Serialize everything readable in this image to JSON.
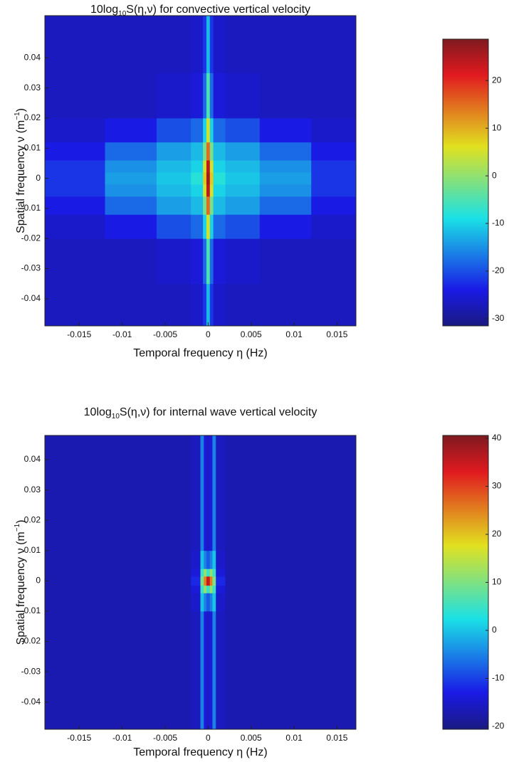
{
  "chart_data": [
    {
      "type": "heatmap",
      "title": [
        "10log",
        "10",
        "S(η,ν) for convective vertical velocity"
      ],
      "x_label": "Temporal frequency η (Hz)",
      "y_label": [
        "Spatial frequency ν (m",
        "−1",
        ")"
      ],
      "xlim": [
        -0.019,
        0.0172
      ],
      "ylim": [
        -0.049,
        0.054
      ],
      "xticks": [
        -0.015,
        -0.01,
        -0.005,
        0,
        0.005,
        0.01,
        0.015
      ],
      "yticks": [
        -0.04,
        -0.03,
        -0.02,
        -0.01,
        0,
        0.01,
        0.02,
        0.03,
        0.04
      ],
      "colormap": "jet",
      "clim": [
        -31.5,
        28.7
      ],
      "colorbar_ticks": [
        -30,
        -20,
        -10,
        0,
        10,
        20
      ],
      "x_edges": [
        -0.019,
        -0.012,
        -0.006,
        -0.002,
        -0.0006,
        -0.0002,
        0.0002,
        0.0006,
        0.002,
        0.006,
        0.012,
        0.0172
      ],
      "y_edges": [
        -0.049,
        -0.035,
        -0.02,
        -0.012,
        -0.006,
        -0.002,
        0.002,
        0.006,
        0.012,
        0.02,
        0.035,
        0.054
      ],
      "z": [
        [
          -27,
          -27,
          -27,
          -26,
          -22,
          -12,
          -22,
          -26,
          -27,
          -27,
          -27
        ],
        [
          -27,
          -27,
          -26,
          -25,
          -18,
          -5,
          -18,
          -25,
          -26,
          -27,
          -27
        ],
        [
          -26,
          -24,
          -20,
          -18,
          -10,
          5,
          -10,
          -18,
          -20,
          -24,
          -26
        ],
        [
          -24,
          -18,
          -14,
          -12,
          -2,
          15,
          -2,
          -12,
          -14,
          -18,
          -24
        ],
        [
          -22,
          -15,
          -12,
          -10,
          5,
          24,
          5,
          -10,
          -12,
          -15,
          -22
        ],
        [
          -22,
          -14,
          -11,
          -8,
          8,
          26,
          8,
          -8,
          -11,
          -14,
          -22
        ],
        [
          -22,
          -15,
          -12,
          -10,
          5,
          24,
          5,
          -10,
          -12,
          -15,
          -22
        ],
        [
          -24,
          -18,
          -14,
          -12,
          -2,
          15,
          -2,
          -12,
          -14,
          -18,
          -24
        ],
        [
          -26,
          -24,
          -20,
          -18,
          -10,
          5,
          -10,
          -18,
          -20,
          -24,
          -26
        ],
        [
          -27,
          -27,
          -26,
          -25,
          -18,
          -5,
          -18,
          -25,
          -26,
          -27,
          -27
        ],
        [
          -27,
          -27,
          -27,
          -26,
          -22,
          -12,
          -22,
          -26,
          -27,
          -27,
          -27
        ]
      ]
    },
    {
      "type": "heatmap",
      "title": [
        "10log",
        "10",
        "S(η,ν) for internal wave vertical velocity"
      ],
      "x_label": "Temporal frequency η (Hz)",
      "y_label": [
        "Spatial frequency ν (m",
        "−1",
        ")"
      ],
      "xlim": [
        -0.019,
        0.0172
      ],
      "ylim": [
        -0.049,
        0.048
      ],
      "xticks": [
        -0.015,
        -0.01,
        -0.005,
        0,
        0.005,
        0.01,
        0.015
      ],
      "yticks": [
        -0.04,
        -0.03,
        -0.02,
        -0.01,
        0,
        0.01,
        0.02,
        0.03,
        0.04
      ],
      "colormap": "jet",
      "clim": [
        -20.6,
        40.6
      ],
      "colorbar_ticks": [
        -20,
        -10,
        0,
        10,
        20,
        30,
        40
      ],
      "x_edges": [
        -0.019,
        -0.002,
        -0.0009,
        -0.0005,
        -0.0002,
        0.0002,
        0.0005,
        0.0009,
        0.002,
        0.0172
      ],
      "y_edges": [
        -0.049,
        -0.01,
        -0.004,
        -0.0015,
        0.0015,
        0.004,
        0.01,
        0.048
      ],
      "z": [
        [
          -17,
          -16,
          -5,
          -14,
          -15,
          -14,
          -5,
          -16,
          -17
        ],
        [
          -17,
          -15,
          0,
          -5,
          -8,
          -5,
          0,
          -15,
          -17
        ],
        [
          -17,
          -14,
          5,
          12,
          5,
          12,
          5,
          -14,
          -17
        ],
        [
          -17,
          -12,
          10,
          25,
          35,
          25,
          10,
          -12,
          -17
        ],
        [
          -17,
          -14,
          5,
          12,
          5,
          12,
          5,
          -14,
          -17
        ],
        [
          -17,
          -15,
          0,
          -5,
          -8,
          -5,
          0,
          -15,
          -17
        ],
        [
          -17,
          -16,
          -5,
          -14,
          -15,
          -14,
          -5,
          -16,
          -17
        ]
      ]
    }
  ]
}
